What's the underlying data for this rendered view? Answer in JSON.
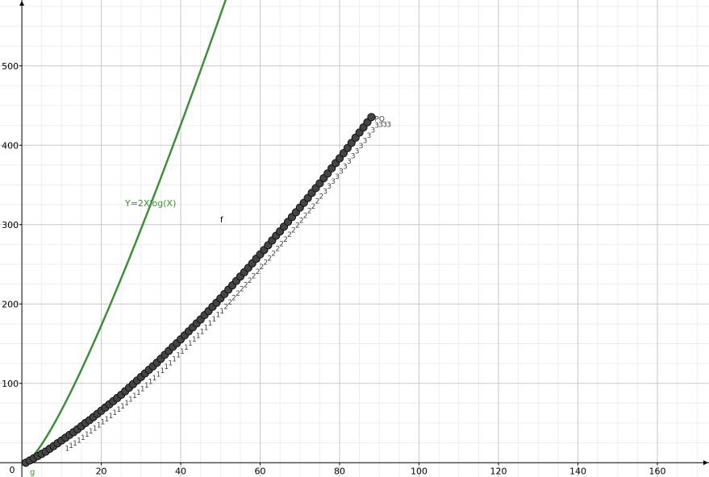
{
  "chart_data": {
    "type": "scatter",
    "title": "",
    "xlabel": "",
    "ylabel": "",
    "xlim": [
      -5.5,
      173
    ],
    "ylim": [
      -18,
      583
    ],
    "grid": true,
    "origin_label": "0",
    "x_ticks": [
      20,
      40,
      60,
      80,
      100,
      120,
      140,
      160
    ],
    "y_ticks": [
      100,
      200,
      300,
      400,
      500
    ],
    "colors": {
      "curve": "#3f8f3a",
      "points_fill": "#444444",
      "points_stroke": "#111111",
      "major_grid": "#c8c8c8",
      "minor_grid": "#eeeeee",
      "axis": "#000000"
    },
    "series": [
      {
        "label": "Y=2Xlog(X)",
        "type": "line",
        "function": "y = 2 * x * log2(x)",
        "x_range": [
          1,
          75
        ]
      },
      {
        "type": "scatter",
        "x_range": [
          1,
          88
        ],
        "x_step": 1,
        "y_values": [
          0,
          2.8,
          5.6,
          8.4,
          11.2,
          14,
          17.5,
          21,
          24.5,
          28,
          31.5,
          35,
          38.5,
          42,
          46,
          50,
          53.5,
          57.5,
          61.5,
          65.5,
          69.5,
          73.5,
          77.5,
          81.5,
          85.5,
          90,
          94.5,
          99,
          103.5,
          108,
          112.5,
          117,
          121.5,
          126,
          131,
          136,
          141,
          146,
          150.5,
          155.5,
          160.5,
          165.5,
          170.5,
          175.5,
          180.5,
          186,
          191,
          196.5,
          201.5,
          207,
          212.5,
          218,
          223.5,
          229,
          234.5,
          240,
          245.5,
          251,
          257,
          262.5,
          268,
          274,
          280,
          286,
          291.5,
          297.5,
          303.5,
          309.5,
          315.5,
          321.5,
          327.5,
          333.5,
          340,
          346,
          352,
          358.5,
          364.5,
          371,
          377.5,
          383.5,
          390,
          396.5,
          403,
          409.5,
          416,
          422.5,
          429,
          435.5
        ]
      }
    ],
    "annotations": {
      "curve_label": "Y=2Xlog(X)",
      "axis_corner_label": "g",
      "f_label": "f",
      "top_labels": [
        "PQ",
        "3",
        "3",
        "3"
      ]
    }
  }
}
